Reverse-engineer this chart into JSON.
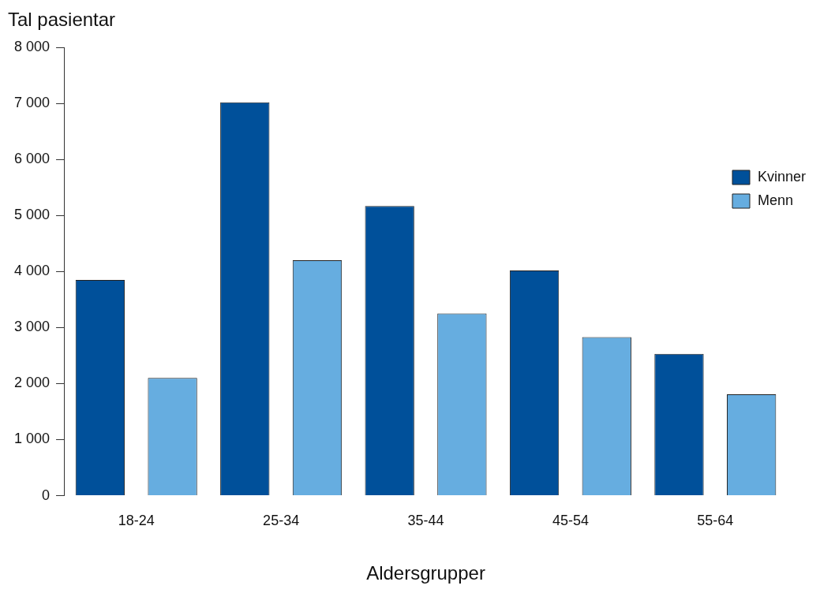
{
  "chart_data": {
    "type": "bar",
    "xlabel": "Aldersgrupper",
    "ylabel": "Tal pasientar",
    "categories": [
      "18-24",
      "25-34",
      "35-44",
      "45-54",
      "55-64"
    ],
    "series": [
      {
        "name": "Kvinner",
        "color": "#00509a",
        "values": [
          3850,
          7020,
          5170,
          4020,
          2530
        ]
      },
      {
        "name": "Menn",
        "color": "#66ade0",
        "values": [
          2100,
          4200,
          3250,
          2830,
          1810
        ]
      }
    ],
    "ylim": [
      0,
      8000
    ],
    "yticks": [
      {
        "value": 0,
        "label": "0"
      },
      {
        "value": 1000,
        "label": "1 000"
      },
      {
        "value": 2000,
        "label": "2 000"
      },
      {
        "value": 3000,
        "label": "3 000"
      },
      {
        "value": 4000,
        "label": "4 000"
      },
      {
        "value": 5000,
        "label": "5 000"
      },
      {
        "value": 6000,
        "label": "6 000"
      },
      {
        "value": 7000,
        "label": "7 000"
      },
      {
        "value": 8000,
        "label": "8 000"
      }
    ],
    "grid": false,
    "legend": "right"
  }
}
